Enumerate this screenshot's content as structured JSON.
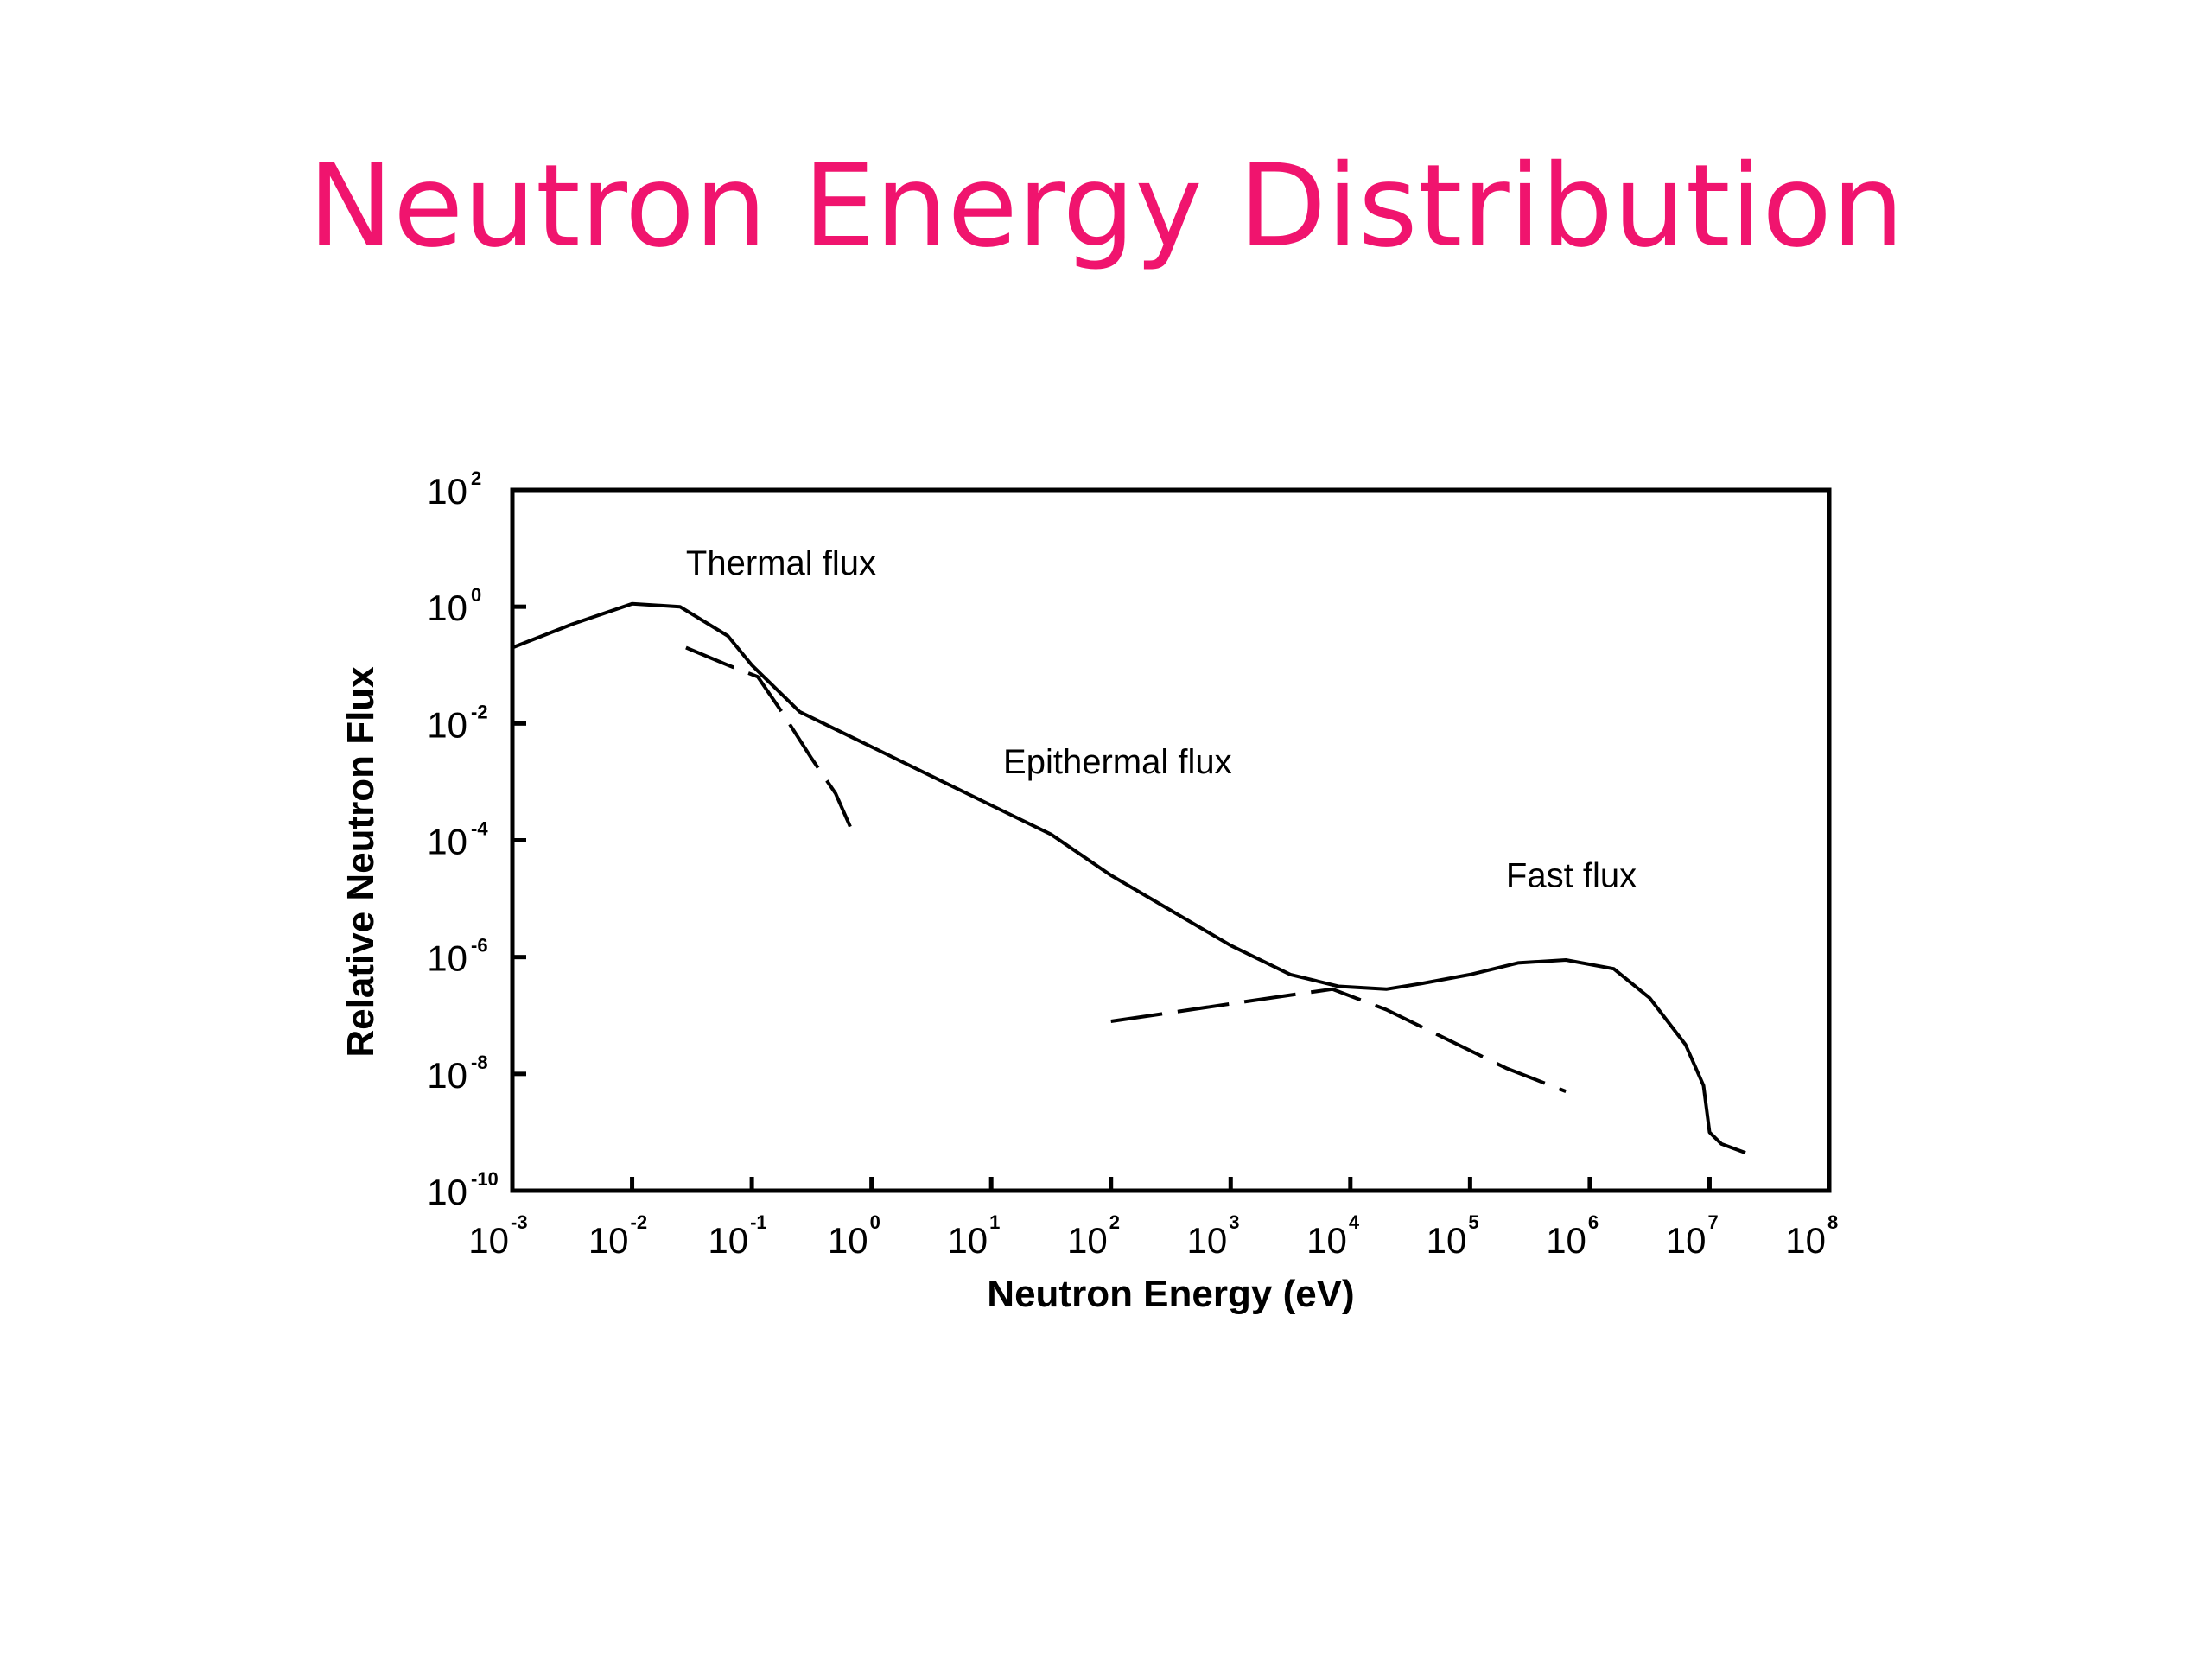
{
  "slide": {
    "title": "Neutron Energy Distribution"
  },
  "chart_data": {
    "type": "line",
    "xlabel": "Neutron Energy (eV)",
    "ylabel": "Relative Neutron Flux",
    "xscale": "log",
    "yscale": "log",
    "xlim": [
      -3,
      8
    ],
    "ylim": [
      -10,
      2
    ],
    "x_ticks": [
      {
        "base": "10",
        "exp": "-3"
      },
      {
        "base": "10",
        "exp": "-2"
      },
      {
        "base": "10",
        "exp": "-1"
      },
      {
        "base": "10",
        "exp": "0"
      },
      {
        "base": "10",
        "exp": "1"
      },
      {
        "base": "10",
        "exp": "2"
      },
      {
        "base": "10",
        "exp": "3"
      },
      {
        "base": "10",
        "exp": "4"
      },
      {
        "base": "10",
        "exp": "5"
      },
      {
        "base": "10",
        "exp": "6"
      },
      {
        "base": "10",
        "exp": "7"
      },
      {
        "base": "10",
        "exp": "8"
      }
    ],
    "y_ticks": [
      {
        "base": "10",
        "exp": "2"
      },
      {
        "base": "10",
        "exp": "0"
      },
      {
        "base": "10",
        "exp": "-2"
      },
      {
        "base": "10",
        "exp": "-4"
      },
      {
        "base": "10",
        "exp": "-6"
      },
      {
        "base": "10",
        "exp": "-8"
      },
      {
        "base": "10",
        "exp": "-10"
      }
    ],
    "x_tick_values": [
      -3,
      -2,
      -1,
      0,
      1,
      2,
      3,
      4,
      5,
      6,
      7,
      8
    ],
    "y_tick_values": [
      2,
      0,
      -2,
      -4,
      -6,
      -8,
      -10
    ],
    "series": [
      {
        "style": "solid",
        "points": [
          [
            -3,
            -0.7
          ],
          [
            -2.5,
            -0.3
          ],
          [
            -2,
            0.05
          ],
          [
            -1.6,
            0.0
          ],
          [
            -1.2,
            -0.5
          ],
          [
            -1.0,
            -1.0
          ],
          [
            -0.6,
            -1.8
          ],
          [
            -0.1,
            -2.3
          ],
          [
            0.5,
            -2.9
          ],
          [
            1.0,
            -3.4
          ],
          [
            1.5,
            -3.9
          ],
          [
            2.0,
            -4.6
          ],
          [
            2.5,
            -5.2
          ],
          [
            3.0,
            -5.8
          ],
          [
            3.5,
            -6.3
          ],
          [
            3.9,
            -6.5
          ],
          [
            4.3,
            -6.55
          ],
          [
            4.6,
            -6.45
          ],
          [
            5.0,
            -6.3
          ],
          [
            5.4,
            -6.1
          ],
          [
            5.8,
            -6.05
          ],
          [
            6.2,
            -6.2
          ],
          [
            6.5,
            -6.7
          ],
          [
            6.8,
            -7.5
          ],
          [
            6.95,
            -8.2
          ],
          [
            7.0,
            -9.0
          ],
          [
            7.1,
            -9.2
          ],
          [
            7.3,
            -9.35
          ]
        ]
      },
      {
        "style": "dashed",
        "points": [
          [
            -1.55,
            -0.7
          ],
          [
            -1.2,
            -1.0
          ],
          [
            -0.95,
            -1.2
          ],
          [
            -0.75,
            -1.8
          ],
          [
            -0.5,
            -2.6
          ],
          [
            -0.3,
            -3.2
          ],
          [
            -0.15,
            -3.9
          ]
        ]
      },
      {
        "style": "dashed",
        "points": [
          [
            2.0,
            -7.1
          ],
          [
            2.5,
            -6.95
          ],
          [
            3.0,
            -6.8
          ],
          [
            3.5,
            -6.65
          ],
          [
            3.85,
            -6.55
          ],
          [
            4.3,
            -6.9
          ],
          [
            4.8,
            -7.4
          ],
          [
            5.3,
            -7.9
          ],
          [
            5.8,
            -8.3
          ]
        ]
      }
    ],
    "annotations": [
      {
        "text": "Thermal flux",
        "x": -1.55,
        "y": 0.55
      },
      {
        "text": "Epithermal flux",
        "x": 1.1,
        "y": -2.85
      },
      {
        "text": "Fast flux",
        "x": 5.3,
        "y": -4.8
      }
    ]
  }
}
